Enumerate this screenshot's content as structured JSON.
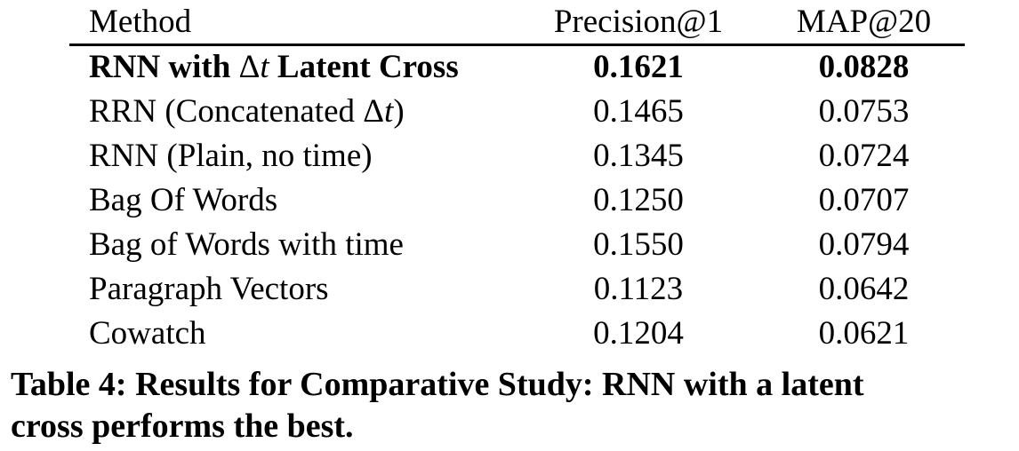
{
  "table": {
    "columns": [
      "Method",
      "Precision@1",
      "MAP@20"
    ],
    "rows": [
      {
        "method_pre": "RNN with ",
        "method_delta": "Δ",
        "method_t": "t",
        "method_post": " Latent Cross",
        "precision_at_1": "0.1621",
        "map_at_20": "0.0828"
      },
      {
        "method_pre": "RRN (Concatenated ",
        "method_delta": "Δ",
        "method_t": "t",
        "method_post": ")",
        "precision_at_1": "0.1465",
        "map_at_20": "0.0753"
      },
      {
        "method_pre": "RNN (Plain, no time)",
        "precision_at_1": "0.1345",
        "map_at_20": "0.0724"
      },
      {
        "method_pre": "Bag Of Words",
        "precision_at_1": "0.1250",
        "map_at_20": "0.0707"
      },
      {
        "method_pre": "Bag of Words with time",
        "precision_at_1": "0.1550",
        "map_at_20": "0.0794"
      },
      {
        "method_pre": "Paragraph Vectors",
        "precision_at_1": "0.1123",
        "map_at_20": "0.0642"
      },
      {
        "method_pre": "Cowatch",
        "precision_at_1": "0.1204",
        "map_at_20": "0.0621"
      }
    ]
  },
  "caption": {
    "line1": "Table 4: Results for Comparative Study: RNN with a latent",
    "line2": "cross performs the best."
  },
  "colors": {
    "text": "#000000",
    "background": "#ffffff",
    "rule": "#000000"
  }
}
